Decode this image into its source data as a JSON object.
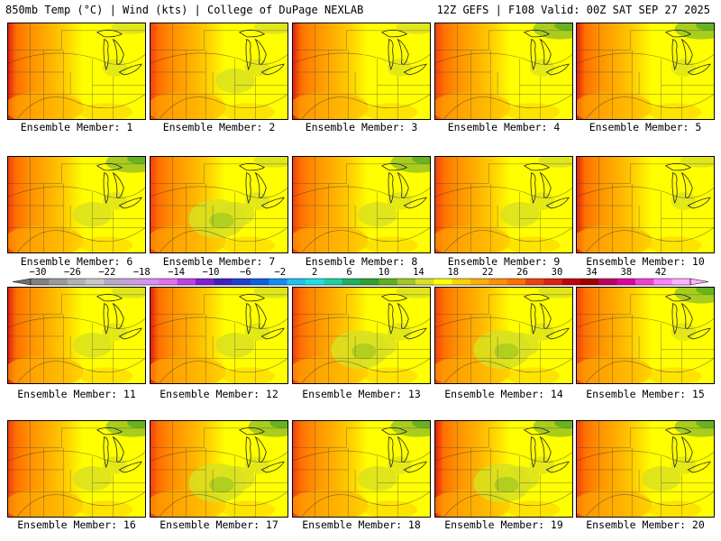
{
  "header": {
    "left_title": "850mb Temp (°C) | Wind (kts) | College of DuPage NEXLAB",
    "right_title": "12Z GEFS | F108 Valid: 00Z SAT SEP 27 2025"
  },
  "panels": [
    {
      "label": "Ensemble Member: 1"
    },
    {
      "label": "Ensemble Member: 2"
    },
    {
      "label": "Ensemble Member: 3"
    },
    {
      "label": "Ensemble Member: 4"
    },
    {
      "label": "Ensemble Member: 5"
    },
    {
      "label": "Ensemble Member: 6"
    },
    {
      "label": "Ensemble Member: 7"
    },
    {
      "label": "Ensemble Member: 8"
    },
    {
      "label": "Ensemble Member: 9"
    },
    {
      "label": "Ensemble Member: 10"
    },
    {
      "label": "Ensemble Member: 11"
    },
    {
      "label": "Ensemble Member: 12"
    },
    {
      "label": "Ensemble Member: 13"
    },
    {
      "label": "Ensemble Member: 14"
    },
    {
      "label": "Ensemble Member: 15"
    },
    {
      "label": "Ensemble Member: 16"
    },
    {
      "label": "Ensemble Member: 17"
    },
    {
      "label": "Ensemble Member: 18"
    },
    {
      "label": "Ensemble Member: 19"
    },
    {
      "label": "Ensemble Member: 20"
    }
  ],
  "colorbar": {
    "tick_labels": [
      "-30",
      "-26",
      "-22",
      "-18",
      "-14",
      "-10",
      "-6",
      "-2",
      "2",
      "6",
      "10",
      "14",
      "18",
      "22",
      "26",
      "30",
      "34",
      "38",
      "42"
    ],
    "colors": [
      "#808080",
      "#9a9a9a",
      "#b2b2b2",
      "#c8c8c8",
      "#b8a8c8",
      "#c8a0e0",
      "#d890f0",
      "#e070f0",
      "#c040e0",
      "#8020d0",
      "#4020c0",
      "#2040d0",
      "#1060e0",
      "#1090f0",
      "#20c0f0",
      "#20e0e0",
      "#20d0a0",
      "#20b060",
      "#30a030",
      "#60b020",
      "#a0c820",
      "#d8e020",
      "#ffff00",
      "#ffd000",
      "#ffb000",
      "#ff9000",
      "#ff7000",
      "#f04010",
      "#e02010",
      "#c00010",
      "#a00000",
      "#c00060",
      "#e000a0",
      "#f040d0",
      "#ff80ff",
      "#ffb0ff"
    ]
  }
}
